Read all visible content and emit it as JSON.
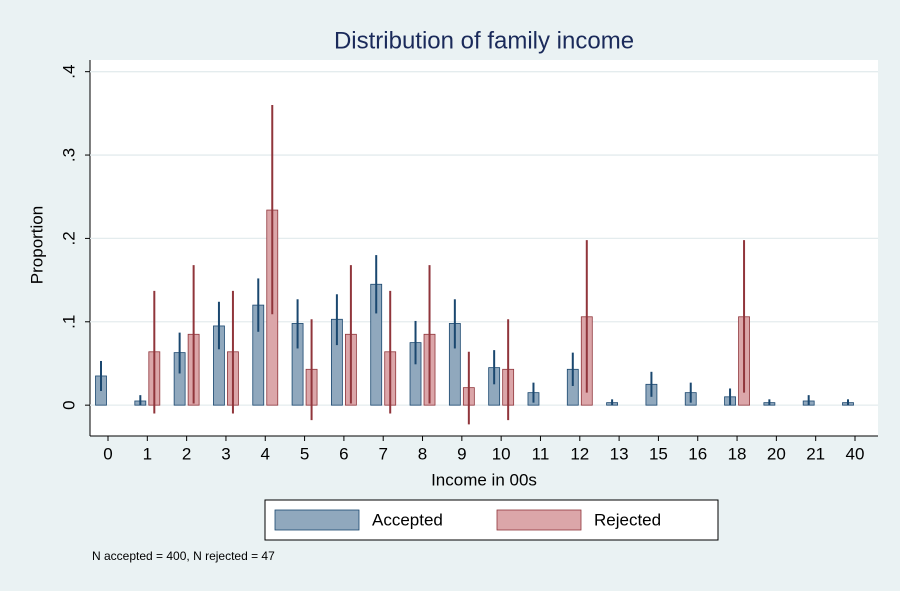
{
  "chart_data": {
    "type": "bar",
    "title": "Distribution of family income",
    "x_label": "Income in 00s",
    "y_label": "Proportion",
    "note": "N accepted = 400, N rejected = 47",
    "categories": [
      "0",
      "1",
      "2",
      "3",
      "4",
      "5",
      "6",
      "7",
      "8",
      "9",
      "10",
      "11",
      "12",
      "13",
      "15",
      "16",
      "18",
      "20",
      "21",
      "40"
    ],
    "series": [
      {
        "name": "Accepted",
        "color": "#90a8bd",
        "edge": "#1a476f",
        "values": [
          0.035,
          0.005,
          0.063,
          0.095,
          0.12,
          0.098,
          0.103,
          0.145,
          0.075,
          0.098,
          0.045,
          0.015,
          0.043,
          0.003,
          0.025,
          0.015,
          0.01,
          0.003,
          0.005,
          0.003
        ],
        "lower": [
          0.017,
          0,
          0.038,
          0.067,
          0.088,
          0.068,
          0.072,
          0.11,
          0.049,
          0.068,
          0.025,
          0.003,
          0.023,
          0,
          0.01,
          0.003,
          0,
          0,
          0,
          0
        ],
        "upper": [
          0.053,
          0.012,
          0.087,
          0.124,
          0.152,
          0.127,
          0.133,
          0.18,
          0.101,
          0.127,
          0.066,
          0.027,
          0.063,
          0.007,
          0.04,
          0.027,
          0.02,
          0.007,
          0.012,
          0.007
        ]
      },
      {
        "name": "Rejected",
        "color": "#dba6a9",
        "edge": "#90353b",
        "values": [
          null,
          0.064,
          0.085,
          0.064,
          0.234,
          0.043,
          0.085,
          0.064,
          0.085,
          0.021,
          0.043,
          null,
          0.106,
          null,
          null,
          null,
          0.106,
          null,
          null,
          null
        ],
        "lower": [
          null,
          -0.01,
          0.002,
          -0.01,
          0.109,
          -0.018,
          0.002,
          -0.01,
          0.002,
          -0.023,
          -0.018,
          null,
          0.015,
          null,
          null,
          null,
          0.015,
          null,
          null,
          null
        ],
        "upper": [
          null,
          0.137,
          0.168,
          0.137,
          0.36,
          0.103,
          0.168,
          0.137,
          0.168,
          0.064,
          0.103,
          null,
          0.198,
          null,
          null,
          null,
          0.198,
          null,
          null,
          null
        ]
      }
    ],
    "ylim": [
      -0.037,
      0.414
    ],
    "yticks": [
      0,
      {
        "value": 0.1,
        "label": ".1"
      },
      {
        "value": 0.2,
        "label": ".2"
      },
      {
        "value": 0.3,
        "label": ".3"
      },
      {
        "value": 0.4,
        "label": ".4"
      }
    ],
    "grid": true,
    "legend": "bottom"
  }
}
